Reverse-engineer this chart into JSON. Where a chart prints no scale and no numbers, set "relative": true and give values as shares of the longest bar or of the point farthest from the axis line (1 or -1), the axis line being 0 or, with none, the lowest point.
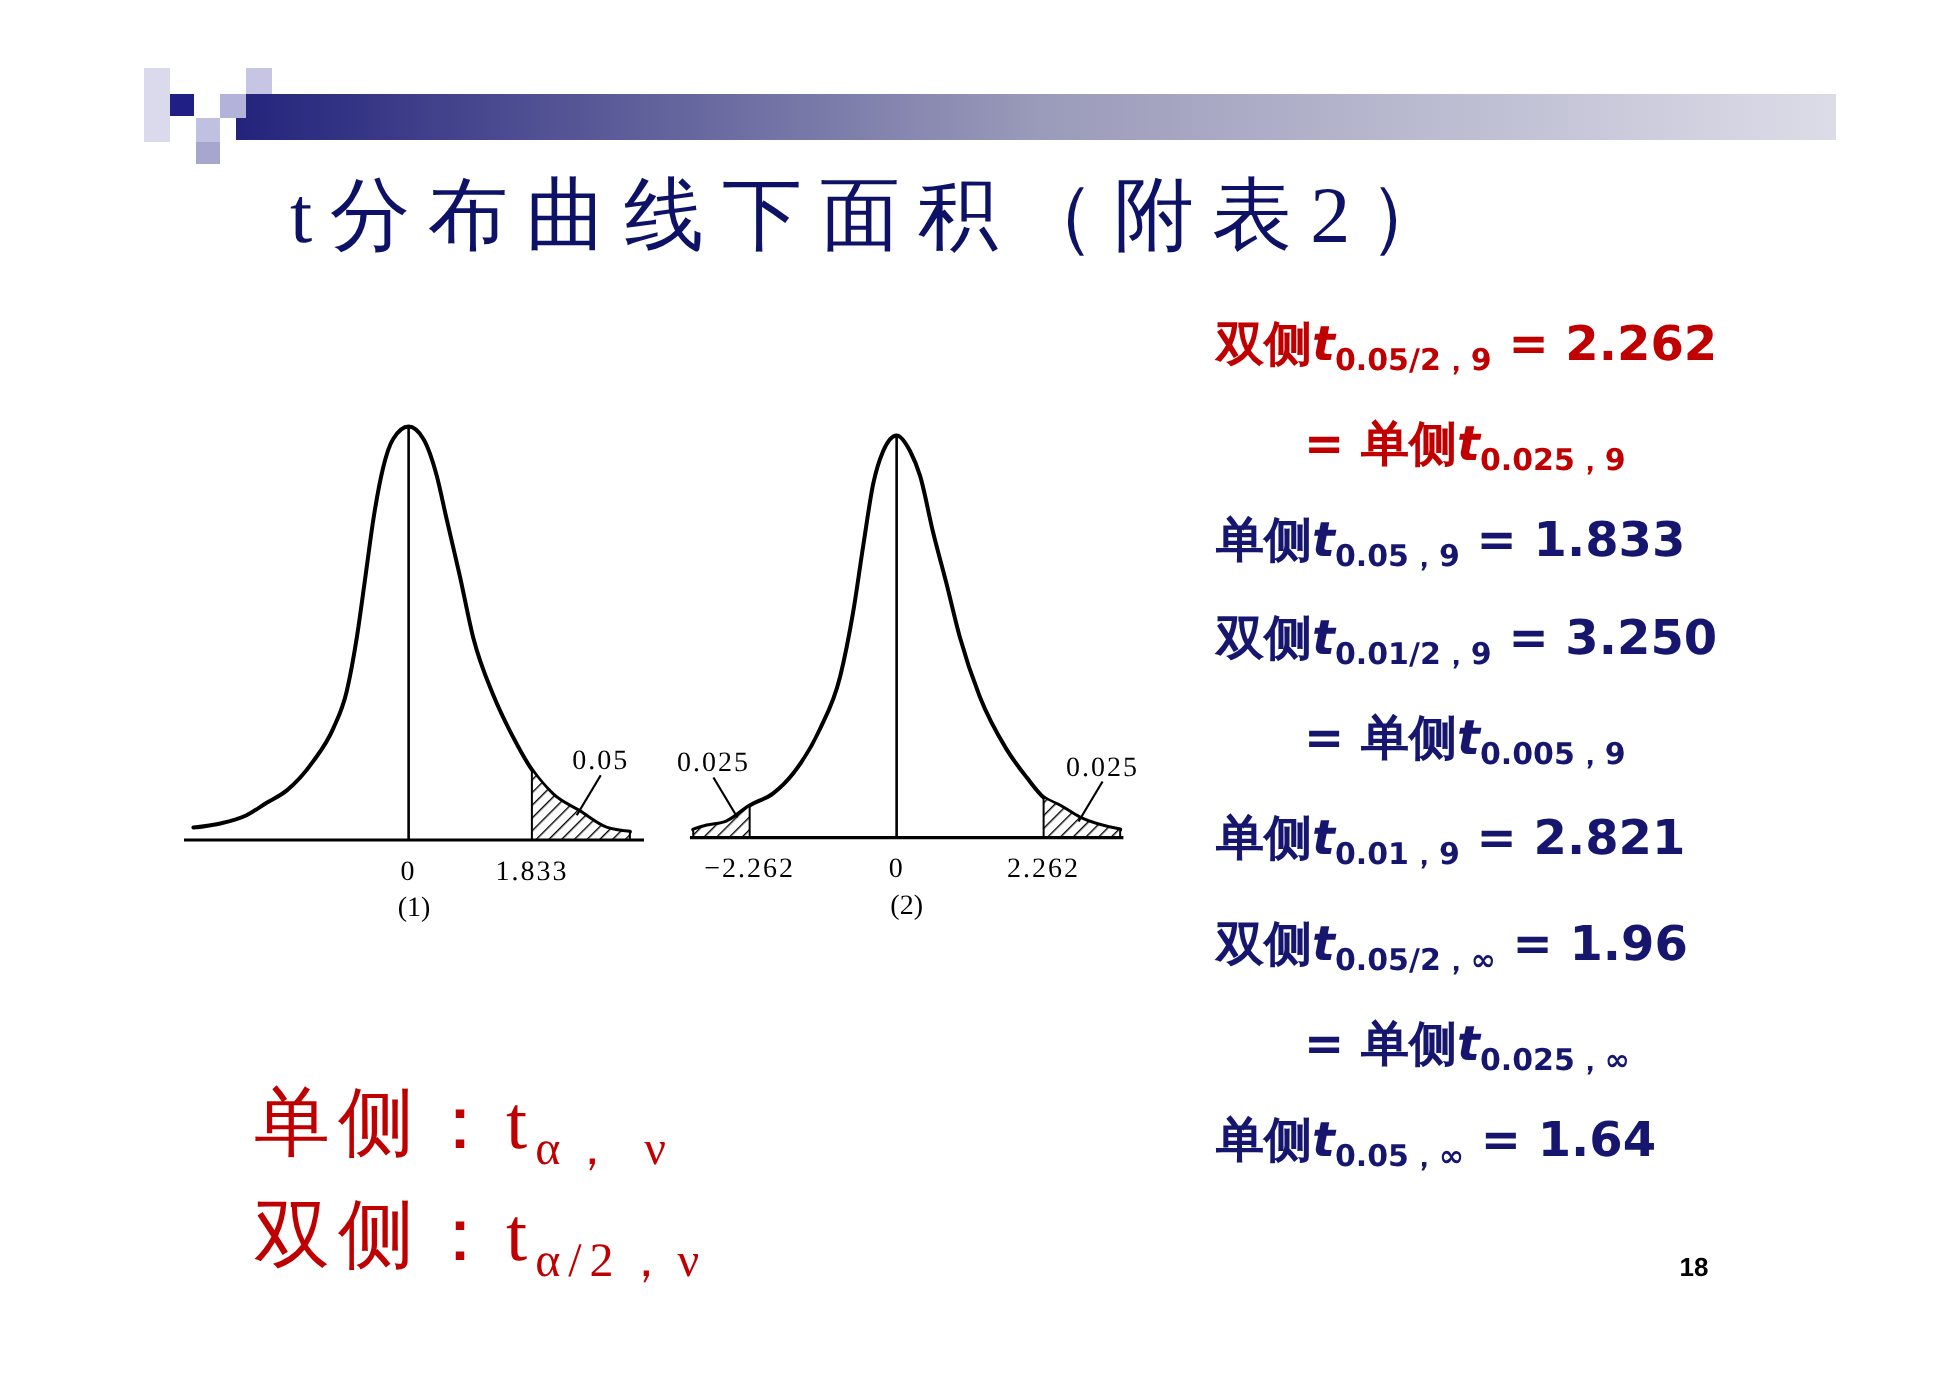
{
  "chart_data": [
    {
      "type": "line",
      "title": "t分布曲线下面积（附表2）",
      "xlabel": "(1)",
      "relative": true,
      "xlim": [
        -3.34,
        3.5
      ],
      "xticks": [
        0,
        1.833
      ],
      "series": [
        {
          "color": "#000000",
          "x": [
            -3.2,
            -2.8,
            -2.41,
            -2.11,
            -1.81,
            -1.42,
            -1.12,
            -0.92,
            -0.77,
            -0.64,
            -0.52,
            -0.38,
            -0.23,
            0,
            0.22,
            0.42,
            0.56,
            0.76,
            0.96,
            1.26,
            1.55,
            1.833,
            2.15,
            2.54,
            2.94,
            3.29
          ],
          "values": [
            0.03,
            0.04,
            0.06,
            0.09,
            0.12,
            0.19,
            0.27,
            0.36,
            0.49,
            0.64,
            0.78,
            0.9,
            0.97,
            1,
            0.97,
            0.88,
            0.78,
            0.64,
            0.49,
            0.35,
            0.25,
            0.17,
            0.11,
            0.07,
            0.03,
            0.02
          ]
        },
        {
          "type": "area",
          "color": "#000000",
          "x": [
            1.833,
            2.15,
            2.54,
            2.94,
            3.29
          ],
          "values": [
            0.17,
            0.11,
            0.07,
            0.03,
            0.02
          ]
        }
      ],
      "ref_lines": [
        {
          "axis": "x",
          "value": 0
        }
      ],
      "annotations": [
        {
          "text": "0.05",
          "x": 2.5,
          "y": 0.06
        }
      ]
    },
    {
      "type": "line",
      "xlabel": "(2)",
      "relative": true,
      "xlim": [
        -3.18,
        3.49
      ],
      "xticks": [
        {
          "value": -2.262,
          "label": "−2.262"
        },
        0,
        2.262
      ],
      "series": [
        {
          "color": "#000000",
          "x": [
            -3.13,
            -2.92,
            -2.62,
            -2.262,
            -1.9,
            -1.59,
            -1.18,
            -0.87,
            -0.67,
            -0.51,
            -0.36,
            -0.21,
            0,
            0.21,
            0.36,
            0.56,
            0.77,
            0.97,
            1.28,
            1.69,
            2.0,
            2.262,
            2.51,
            2.82,
            3.44
          ],
          "values": [
            0.02,
            0.03,
            0.04,
            0.08,
            0.11,
            0.16,
            0.27,
            0.4,
            0.56,
            0.73,
            0.88,
            0.96,
            1,
            0.96,
            0.9,
            0.76,
            0.63,
            0.5,
            0.35,
            0.22,
            0.15,
            0.1,
            0.08,
            0.05,
            0.02
          ]
        },
        {
          "type": "area",
          "color": "#000000",
          "x": [
            -3.13,
            -2.92,
            -2.62,
            -2.262
          ],
          "values": [
            0.02,
            0.03,
            0.04,
            0.08
          ]
        },
        {
          "type": "area",
          "color": "#000000",
          "x": [
            2.262,
            2.51,
            2.82,
            3.44
          ],
          "values": [
            0.1,
            0.08,
            0.05,
            0.02
          ]
        }
      ],
      "ref_lines": [
        {
          "axis": "x",
          "value": 0
        }
      ],
      "annotations": [
        {
          "text": "0.025",
          "x": -2.45,
          "y": 0.05
        },
        {
          "text": "0.025",
          "x": 2.8,
          "y": 0.04
        }
      ]
    },
    {
      "type": "other",
      "annotations": [
        "双侧t$_{0.05/2，9}$ = 2.262",
        "= 单侧t$_{0.025，9}$",
        "单侧t$_{0.05，9}$ = 1.833",
        "双侧t$_{0.01/2，9}$ = 3.250",
        "= 单侧t$_{0.005，9}$",
        "单侧t$_{0.01，9}$ = 2.821",
        "双侧t$_{0.05/2，∞}$ = 1.96",
        "= 单侧t$_{0.025，∞}$",
        "单侧t$_{0.05，∞}$ = 1.64",
        "单侧：t$_{α， ν}$",
        "双侧：t$_{α/2，ν}$",
        "18"
      ]
    }
  ]
}
